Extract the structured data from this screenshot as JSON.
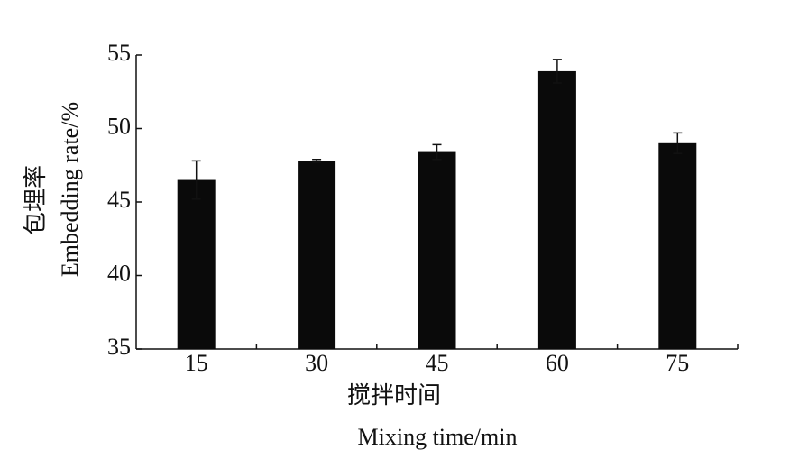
{
  "chart_data": {
    "type": "bar",
    "ylabel": "包埋率",
    "ylabel_en": "Embedding rate/%",
    "xlabel": "搅拌时间",
    "xlabel_en": "Mixing time/min",
    "categories": [
      "15",
      "30",
      "45",
      "60",
      "75"
    ],
    "values": [
      46.5,
      47.8,
      48.4,
      53.9,
      49.0
    ],
    "errors": [
      1.3,
      0.1,
      0.5,
      0.8,
      0.7
    ],
    "color": "#0a0a0a",
    "ylim": [
      35,
      55
    ],
    "yticks": [
      35,
      40,
      45,
      50,
      55
    ],
    "grid": false
  }
}
